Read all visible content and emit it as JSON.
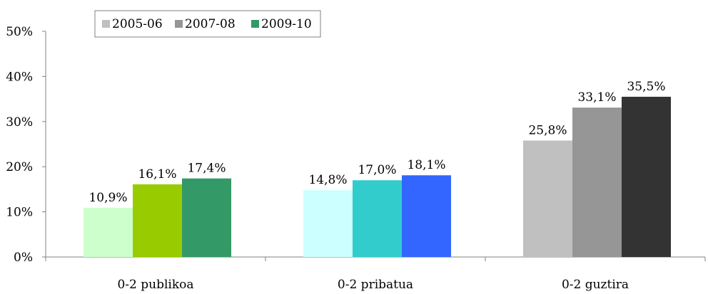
{
  "chart_data": {
    "type": "bar",
    "categories": [
      "0-2 publikoa",
      "0-2 pribatua",
      "0-2 guztira"
    ],
    "series_names": [
      "2005-06",
      "2007-08",
      "2009-10"
    ],
    "values": [
      [
        10.9,
        16.1,
        17.4
      ],
      [
        14.8,
        17.0,
        18.1
      ],
      [
        25.8,
        33.1,
        35.5
      ]
    ],
    "data_labels": [
      [
        "10,9%",
        "16,1%",
        "17,4%"
      ],
      [
        "14,8%",
        "17,0%",
        "18,1%"
      ],
      [
        "25,8%",
        "33,1%",
        "35,5%"
      ]
    ],
    "bar_colors": [
      [
        "#ccffcc",
        "#99cc00",
        "#339966"
      ],
      [
        "#ccffff",
        "#33cccc",
        "#3366ff"
      ],
      [
        "#c0c0c0",
        "#969696",
        "#333333"
      ]
    ],
    "legend": [
      {
        "label": "2005-06",
        "color": "#c0c0c0"
      },
      {
        "label": "2007-08",
        "color": "#969696"
      },
      {
        "label": "2009-10",
        "color": "#339966"
      }
    ],
    "legend_position": "top-left",
    "ylim": [
      0,
      50
    ],
    "yticks": [
      0,
      10,
      20,
      30,
      40,
      50
    ],
    "ytick_labels": [
      "0%",
      "10%",
      "20%",
      "30%",
      "40%",
      "50%"
    ],
    "grid": false,
    "title": "",
    "xlabel": "",
    "ylabel": ""
  }
}
